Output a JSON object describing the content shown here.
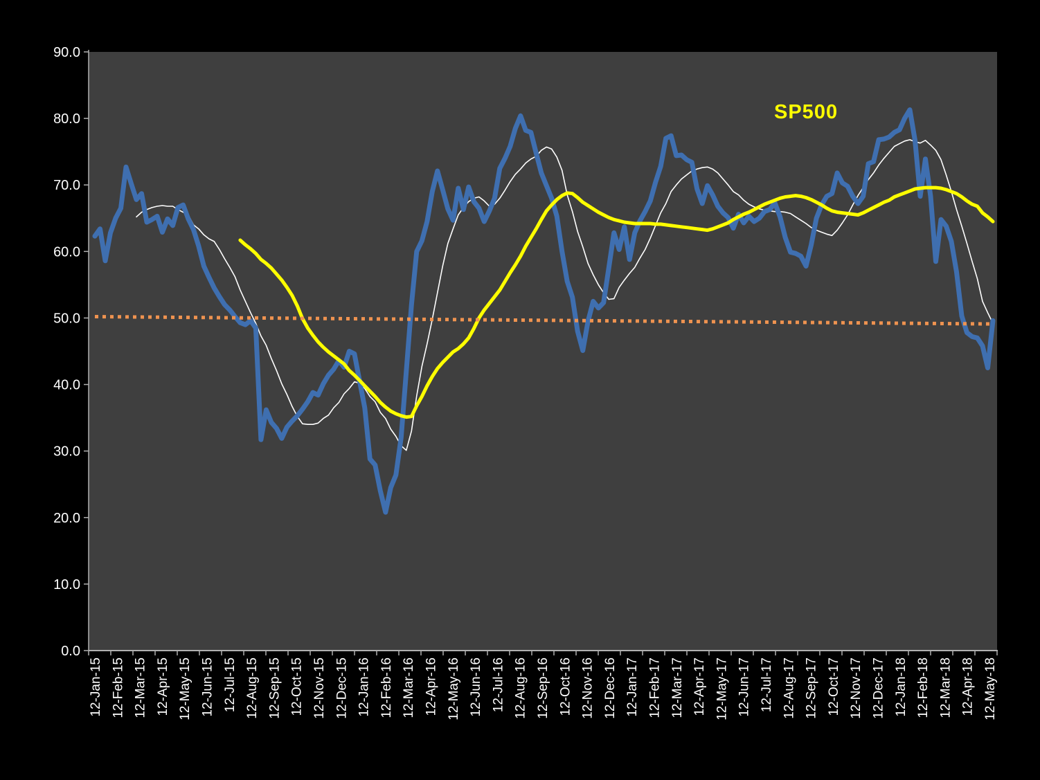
{
  "colors": {
    "background": "#000000",
    "plot_background": "#3f3f3f",
    "axis": "#b0b0b0",
    "tick_label": "#ffffff",
    "blue_series": "#3f6fb0",
    "white_series": "#ffffff",
    "sp500_series": "#ffff00",
    "baseline_series": "#ef9350"
  },
  "legend": {
    "sp500_label": "SP500"
  },
  "chart_data": {
    "type": "line",
    "title": "",
    "grid": "off",
    "legend_position": "inside-top-right",
    "x_axis": {
      "frequency": "weekly",
      "first_point": "12-Jan-15",
      "last_point": "12-May-18",
      "tick_labels": [
        "12-Jan-15",
        "12-Feb-15",
        "12-Mar-15",
        "12-Apr-15",
        "12-May-15",
        "12-Jun-15",
        "12-Jul-15",
        "12-Aug-15",
        "12-Sep-15",
        "12-Oct-15",
        "12-Nov-15",
        "12-Dec-15",
        "12-Jan-16",
        "12-Feb-16",
        "12-Mar-16",
        "12-Apr-16",
        "12-May-16",
        "12-Jun-16",
        "12-Jul-16",
        "12-Aug-16",
        "12-Sep-16",
        "12-Oct-16",
        "12-Nov-16",
        "12-Dec-16",
        "12-Jan-17",
        "12-Feb-17",
        "12-Mar-17",
        "12-Apr-17",
        "12-May-17",
        "12-Jun-17",
        "12-Jul-17",
        "12-Aug-17",
        "12-Sep-17",
        "12-Oct-17",
        "12-Nov-17",
        "12-Dec-17",
        "12-Jan-18",
        "12-Feb-18",
        "12-Mar-18",
        "12-Apr-18",
        "12-May-18"
      ]
    },
    "y_axis": {
      "min": 0,
      "max": 90,
      "tick_labels": [
        "0.0",
        "10.0",
        "20.0",
        "30.0",
        "40.0",
        "50.0",
        "60.0",
        "70.0",
        "80.0",
        "90.0"
      ]
    },
    "series": [
      {
        "name": "white-smoothed-line",
        "color_key": "white_series",
        "line_width": 1.6,
        "line_style": "solid",
        "start_week": 8,
        "values": [
          65.2,
          65.9,
          66.3,
          66.6,
          66.8,
          66.9,
          66.8,
          66.8,
          66.3,
          65.9,
          65.5,
          64.0,
          63.4,
          62.5,
          61.9,
          61.5,
          60.3,
          58.9,
          57.6,
          56.2,
          54.2,
          52.5,
          50.8,
          49.2,
          47.3,
          45.9,
          43.9,
          42.1,
          40.1,
          38.5,
          36.7,
          35.2,
          34.1,
          34.0,
          34.0,
          34.2,
          34.9,
          35.4,
          36.5,
          37.3,
          38.6,
          39.4,
          40.4,
          40.2,
          39.4,
          38.2,
          37.4,
          35.8,
          34.9,
          33.3,
          32.2,
          30.8,
          30.1,
          33.0,
          38.3,
          42.7,
          46.1,
          49.8,
          53.8,
          57.8,
          61.2,
          63.4,
          65.5,
          66.6,
          67.5,
          68.0,
          68.2,
          67.6,
          66.8,
          67.1,
          68.0,
          69.2,
          70.5,
          71.6,
          72.4,
          73.3,
          73.9,
          74.3,
          75.2,
          75.7,
          75.4,
          74.2,
          72.2,
          68.5,
          66.0,
          63.0,
          60.7,
          58.2,
          56.5,
          55.0,
          53.8,
          52.8,
          52.9,
          54.6,
          55.7,
          56.7,
          57.6,
          59.0,
          60.3,
          62.0,
          63.9,
          65.8,
          67.2,
          69.0,
          70.0,
          70.9,
          71.5,
          72.1,
          72.4,
          72.6,
          72.7,
          72.4,
          71.8,
          70.9,
          70.0,
          69.0,
          68.5,
          67.7,
          67.1,
          66.7,
          66.4,
          66.2,
          66.1,
          66.0,
          66.0,
          65.9,
          65.7,
          65.2,
          64.7,
          64.2,
          63.6,
          63.2,
          62.9,
          62.6,
          62.4,
          63.2,
          64.3,
          65.5,
          67.0,
          68.4,
          69.6,
          70.8,
          71.8,
          73.0,
          74.0,
          74.9,
          75.8,
          76.2,
          76.6,
          76.8,
          76.5,
          76.3,
          76.7,
          76.0,
          75.2,
          73.8,
          71.5,
          69.0,
          66.3,
          63.8,
          61.2,
          58.5,
          55.9,
          52.5,
          50.8,
          49.2
        ]
      },
      {
        "name": "blue-weekly-indicator-line",
        "color_key": "blue_series",
        "line_width": 7,
        "line_style": "solid",
        "start_week": 0,
        "values": [
          62.3,
          63.4,
          58.6,
          62.8,
          65.0,
          66.5,
          72.7,
          70.2,
          67.8,
          68.7,
          64.4,
          64.8,
          65.3,
          62.9,
          64.9,
          63.9,
          66.6,
          67.0,
          64.9,
          63.3,
          60.8,
          57.8,
          56.1,
          54.5,
          53.2,
          52.0,
          51.2,
          50.2,
          49.3,
          49.0,
          49.6,
          48.5,
          31.7,
          36.2,
          34.3,
          33.4,
          31.9,
          33.6,
          34.5,
          35.3,
          36.3,
          37.4,
          38.8,
          38.4,
          40.1,
          41.4,
          42.3,
          43.6,
          42.6,
          45.0,
          44.6,
          40.5,
          36.5,
          28.8,
          27.9,
          24.0,
          20.8,
          24.5,
          26.4,
          32.0,
          42.0,
          52.0,
          60.0,
          61.6,
          64.5,
          69.0,
          72.1,
          69.3,
          66.4,
          64.7,
          69.5,
          66.3,
          69.7,
          67.5,
          66.5,
          64.5,
          66.1,
          68.0,
          72.5,
          74.0,
          75.8,
          78.5,
          80.4,
          78.2,
          77.9,
          74.8,
          71.8,
          69.9,
          68.0,
          65.3,
          60.0,
          55.5,
          53.1,
          48.0,
          45.1,
          49.5,
          52.5,
          51.5,
          52.3,
          57.5,
          62.8,
          60.3,
          63.7,
          58.8,
          62.8,
          64.6,
          66.0,
          67.6,
          70.4,
          72.8,
          77.0,
          77.4,
          74.4,
          74.5,
          73.8,
          73.4,
          69.4,
          67.2,
          69.9,
          68.5,
          66.8,
          65.8,
          65.1,
          63.5,
          65.6,
          64.3,
          65.3,
          64.5,
          65.0,
          66.0,
          66.3,
          67.3,
          65.2,
          62.1,
          59.9,
          59.7,
          59.3,
          57.8,
          61.0,
          65.0,
          67.0,
          68.3,
          68.7,
          71.8,
          70.3,
          69.8,
          68.3,
          67.2,
          68.3,
          73.2,
          73.5,
          76.8,
          76.9,
          77.2,
          77.9,
          78.3,
          80.0,
          81.3,
          76.7,
          68.3,
          73.9,
          68.3,
          58.5,
          64.8,
          63.8,
          61.5,
          56.9,
          50.3,
          47.8,
          47.2,
          47.0,
          45.8,
          42.5,
          49.6
        ]
      },
      {
        "name": "SP500",
        "display_label": "SP500",
        "color_key": "sp500_series",
        "line_width": 5,
        "line_style": "solid",
        "start_week": 28,
        "values": [
          61.7,
          61.0,
          60.4,
          59.7,
          58.8,
          58.2,
          57.5,
          56.6,
          55.7,
          54.6,
          53.4,
          51.8,
          49.9,
          48.5,
          47.4,
          46.4,
          45.6,
          44.9,
          44.3,
          43.7,
          43.1,
          42.1,
          41.4,
          40.6,
          39.8,
          39.0,
          38.2,
          37.3,
          36.6,
          36.0,
          35.6,
          35.3,
          35.1,
          35.2,
          36.8,
          38.2,
          39.8,
          41.2,
          42.4,
          43.3,
          44.1,
          44.9,
          45.4,
          46.1,
          47.0,
          48.4,
          50.0,
          51.2,
          52.2,
          53.2,
          54.2,
          55.5,
          56.8,
          58.0,
          59.3,
          60.8,
          62.1,
          63.4,
          64.8,
          66.1,
          67.0,
          67.8,
          68.4,
          68.8,
          68.7,
          68.1,
          67.4,
          66.9,
          66.4,
          65.9,
          65.5,
          65.1,
          64.8,
          64.6,
          64.4,
          64.3,
          64.2,
          64.2,
          64.2,
          64.2,
          64.1,
          64.1,
          64.0,
          63.9,
          63.8,
          63.7,
          63.6,
          63.5,
          63.4,
          63.3,
          63.2,
          63.4,
          63.7,
          64.0,
          64.3,
          64.8,
          65.2,
          65.6,
          65.9,
          66.3,
          66.7,
          67.1,
          67.4,
          67.7,
          68.0,
          68.2,
          68.3,
          68.4,
          68.3,
          68.1,
          67.8,
          67.4,
          67.0,
          66.5,
          66.1,
          65.9,
          65.8,
          65.7,
          65.6,
          65.5,
          65.8,
          66.2,
          66.6,
          67.0,
          67.4,
          67.7,
          68.2,
          68.5,
          68.8,
          69.1,
          69.4,
          69.5,
          69.6,
          69.6,
          69.6,
          69.5,
          69.3,
          69.0,
          68.7,
          68.2,
          67.6,
          67.1,
          66.8,
          65.8,
          65.2,
          64.5
        ]
      },
      {
        "name": "orange-dotted-50-baseline",
        "color_key": "baseline_series",
        "line_width": 5,
        "line_style": "dotted",
        "start_week": 0,
        "trend_start": 50.2,
        "trend_end": 49.1
      }
    ]
  }
}
